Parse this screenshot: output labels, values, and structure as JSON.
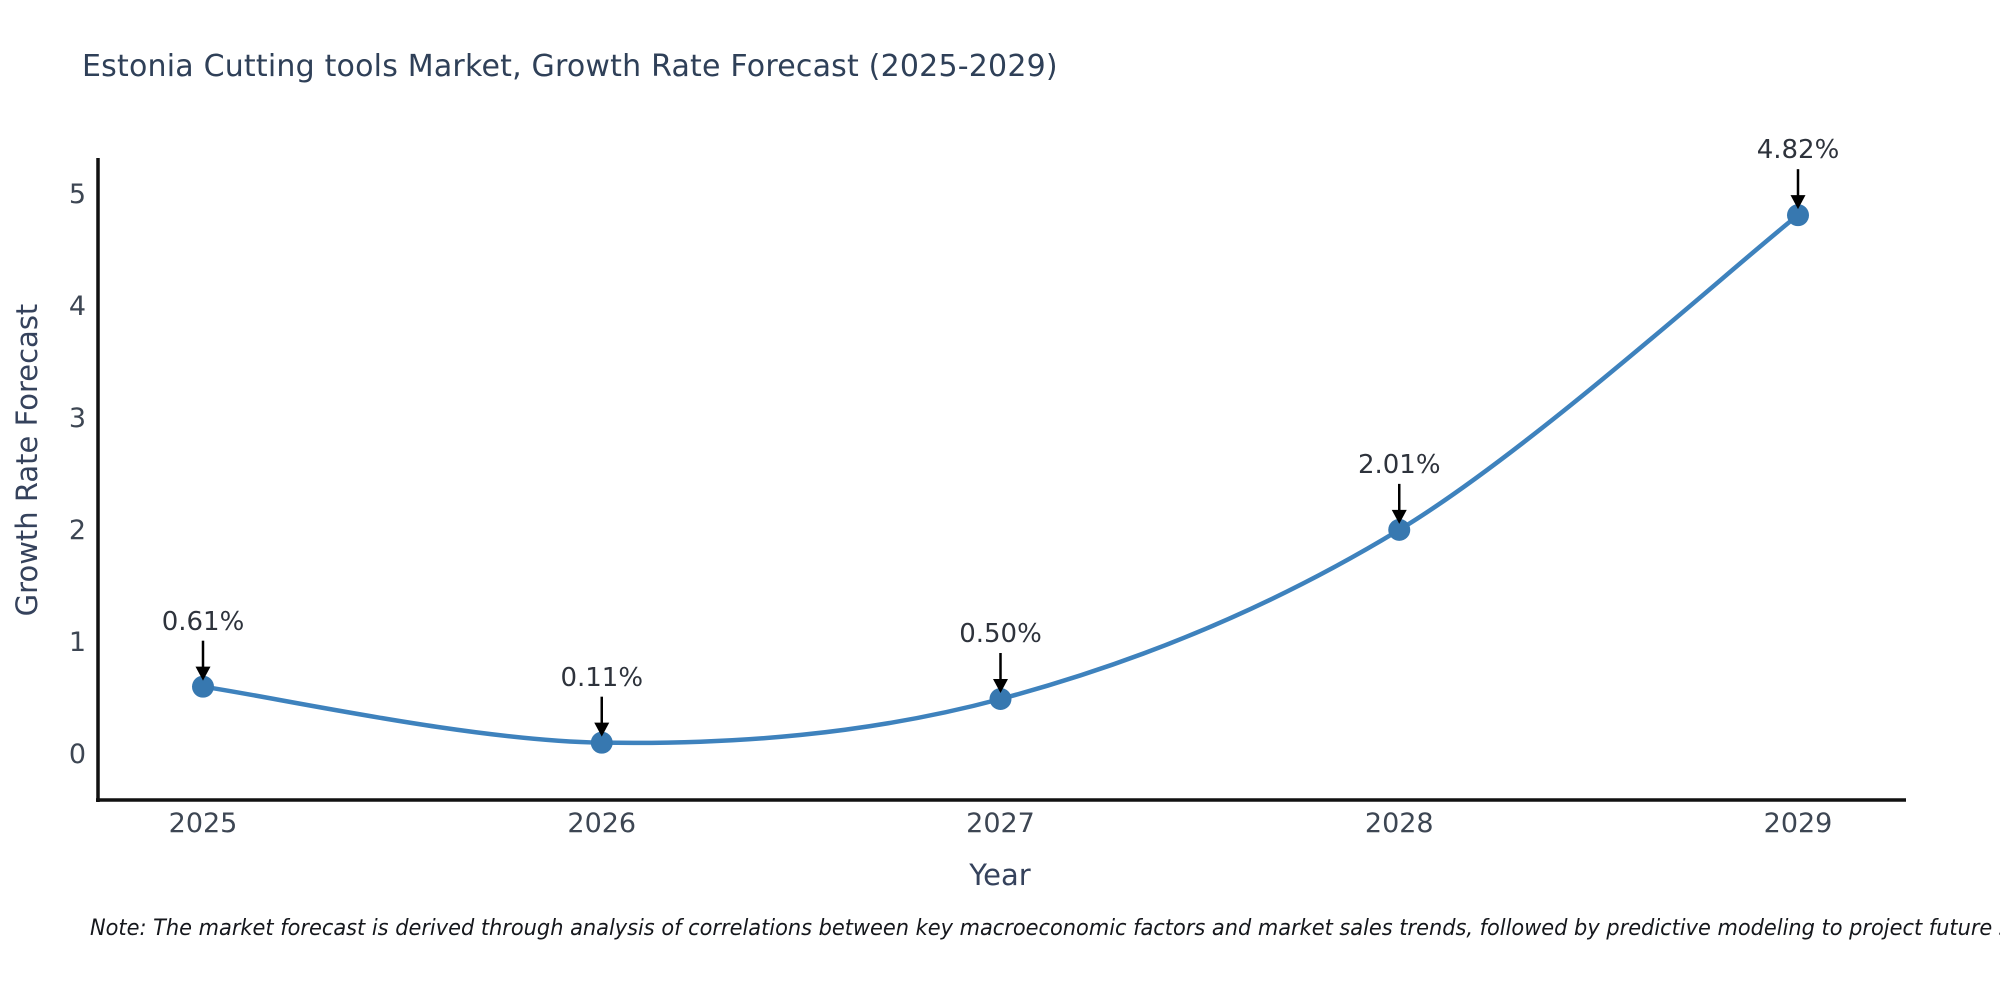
{
  "chart_data": {
    "type": "line",
    "title": "Estonia Cutting tools Market, Growth Rate Forecast (2025-2029)",
    "xlabel": "Year",
    "ylabel": "Growth Rate Forecast",
    "x": [
      2025,
      2026,
      2027,
      2028,
      2029
    ],
    "values": [
      0.61,
      0.11,
      0.5,
      2.01,
      4.82
    ],
    "point_labels": [
      "0.61%",
      "0.11%",
      "0.50%",
      "2.01%",
      "4.82%"
    ],
    "yticks": [
      0,
      1,
      2,
      3,
      4,
      5
    ],
    "ylim": [
      -0.4,
      5.3
    ],
    "grid": false,
    "legend": "none",
    "line_style": "smooth-spline",
    "marker": "circle",
    "annotation_arrows": true
  },
  "note": "Note: The market forecast is derived through analysis of correlations between key macroeconomic factors and market sales trends, followed by predictive modeling to project future sales.",
  "colors": {
    "line": "#3e82bd",
    "marker": "#3778b0",
    "spine": "#111111",
    "title_text": "#2f4058",
    "axis_label_text": "#35425c",
    "tick_text": "#3d4653",
    "annotation_text": "#2e333c",
    "arrow": "#000000",
    "note_text": "#15171c",
    "background": "#ffffff"
  }
}
